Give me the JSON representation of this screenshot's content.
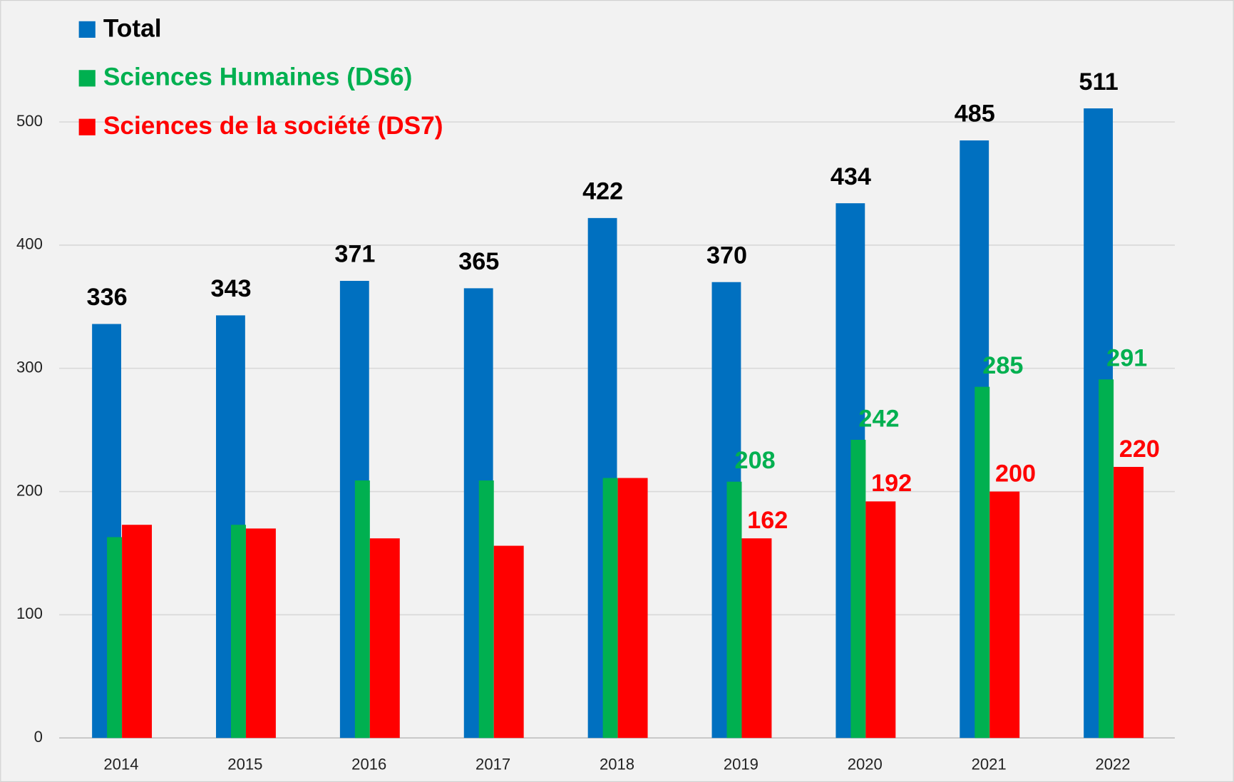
{
  "chart_data": {
    "type": "bar",
    "categories": [
      "2014",
      "2015",
      "2016",
      "2017",
      "2018",
      "2019",
      "2020",
      "2021",
      "2022"
    ],
    "series": [
      {
        "name": "Total",
        "color": "#0070c0",
        "label_color": "#000000",
        "values": [
          336,
          343,
          371,
          365,
          422,
          370,
          434,
          485,
          511
        ],
        "value_labels": [
          "336",
          "343",
          "371",
          "365",
          "422",
          "370",
          "434",
          "485",
          "511"
        ]
      },
      {
        "name": "Sciences Humaines (DS6)",
        "color": "#00b050",
        "values": [
          163,
          173,
          209,
          209,
          211,
          208,
          242,
          285,
          291
        ],
        "value_labels": [
          null,
          null,
          null,
          null,
          null,
          "208",
          "242",
          "285",
          "291"
        ]
      },
      {
        "name": "Sciences de la société (DS7)",
        "color": "#ff0000",
        "values": [
          173,
          170,
          162,
          156,
          211,
          162,
          192,
          200,
          220
        ],
        "value_labels": [
          null,
          null,
          null,
          null,
          null,
          "162",
          "192",
          "200",
          "220"
        ]
      }
    ],
    "ylim": [
      0,
      600
    ],
    "yticks": [
      0,
      100,
      200,
      300,
      400,
      500
    ],
    "grid": true,
    "legend": "top-left"
  }
}
